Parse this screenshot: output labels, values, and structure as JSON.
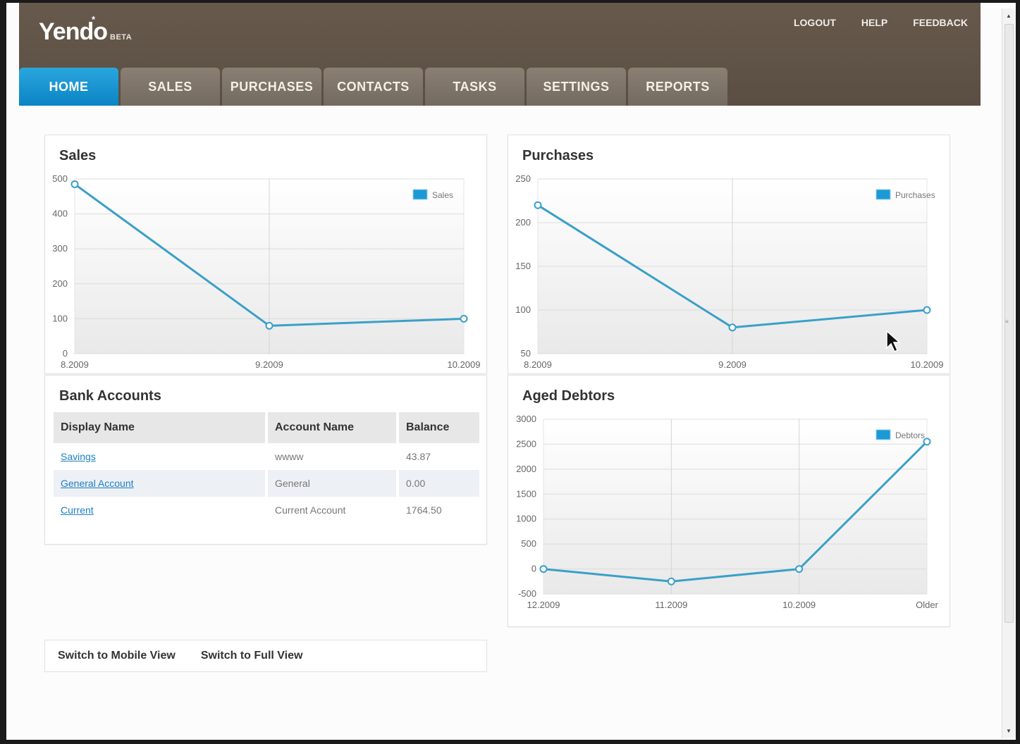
{
  "app": {
    "logo": "Yendo",
    "logo_star": "*",
    "beta": "BETA"
  },
  "toplinks": [
    "LOGOUT",
    "HELP",
    "FEEDBACK"
  ],
  "tabs": [
    {
      "label": "HOME",
      "active": true
    },
    {
      "label": "SALES",
      "active": false
    },
    {
      "label": "PURCHASES",
      "active": false
    },
    {
      "label": "CONTACTS",
      "active": false
    },
    {
      "label": "TASKS",
      "active": false
    },
    {
      "label": "SETTINGS",
      "active": false
    },
    {
      "label": "REPORTS",
      "active": false
    }
  ],
  "colors": {
    "accent": "#0b84c4",
    "line": "#3aa0c8",
    "header": "#5f5347"
  },
  "panels": {
    "sales_title": "Sales",
    "purchases_title": "Purchases",
    "bank_title": "Bank Accounts",
    "debtors_title": "Aged Debtors"
  },
  "bank_accounts": {
    "headers": [
      "Display Name",
      "Account Name",
      "Balance"
    ],
    "rows": [
      {
        "display": "Savings",
        "account": "wwww",
        "balance": "43.87"
      },
      {
        "display": "General Account",
        "account": "General",
        "balance": "0.00"
      },
      {
        "display": "Current",
        "account": "Current Account",
        "balance": "1764.50"
      }
    ]
  },
  "footer": {
    "mobile": "Switch to Mobile View",
    "full": "Switch to Full View"
  },
  "chart_data": [
    {
      "type": "line",
      "title": "Sales",
      "categories": [
        "8.2009",
        "9.2009",
        "10.2009"
      ],
      "series": [
        {
          "name": "Sales",
          "values": [
            485,
            80,
            100
          ]
        }
      ],
      "ylim": [
        0,
        500
      ],
      "yticks": [
        "0",
        "100",
        "200",
        "300",
        "400",
        "500"
      ],
      "grid": true,
      "legend": "top-right"
    },
    {
      "type": "line",
      "title": "Purchases",
      "categories": [
        "8.2009",
        "9.2009",
        "10.2009"
      ],
      "series": [
        {
          "name": "Purchases",
          "values": [
            220,
            80,
            100
          ]
        }
      ],
      "ylim": [
        50,
        250
      ],
      "yticks": [
        "50",
        "100",
        "150",
        "200",
        "250"
      ],
      "grid": true,
      "legend": "top-right"
    },
    {
      "type": "line",
      "title": "Aged Debtors",
      "categories": [
        "12.2009",
        "11.2009",
        "10.2009",
        "Older"
      ],
      "series": [
        {
          "name": "Debtors",
          "values": [
            0,
            -250,
            0,
            2550
          ]
        }
      ],
      "ylim": [
        -500,
        3000
      ],
      "yticks": [
        "-500",
        "0",
        "500",
        "1000",
        "1500",
        "2000",
        "2500",
        "3000"
      ],
      "grid": true,
      "legend": "top-right"
    }
  ]
}
